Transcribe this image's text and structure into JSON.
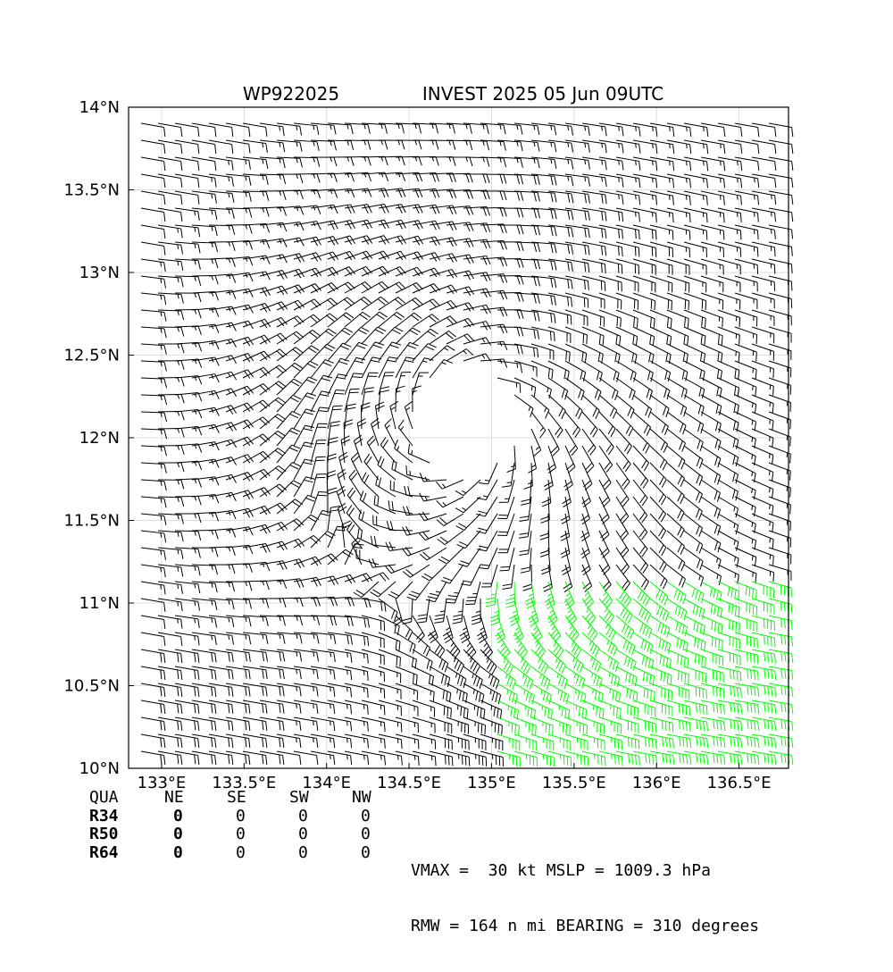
{
  "header": {
    "storm_id": "WP922025",
    "name_time": "INVEST 2025 05 Jun 09UTC"
  },
  "map": {
    "lon_range": [
      132.8,
      136.8
    ],
    "lat_range": [
      10.0,
      14.0
    ],
    "x_ticks": [
      {
        "value": 133.0,
        "label": "133°E"
      },
      {
        "value": 133.5,
        "label": "133.5°E"
      },
      {
        "value": 134.0,
        "label": "134°E"
      },
      {
        "value": 134.5,
        "label": "134.5°E"
      },
      {
        "value": 135.0,
        "label": "135°E"
      },
      {
        "value": 135.5,
        "label": "135.5°E"
      },
      {
        "value": 136.0,
        "label": "136°E"
      },
      {
        "value": 136.5,
        "label": "136.5°E"
      }
    ],
    "y_ticks": [
      {
        "value": 10.0,
        "label": "10°N"
      },
      {
        "value": 10.5,
        "label": "10.5°N"
      },
      {
        "value": 11.0,
        "label": "11°N"
      },
      {
        "value": 11.5,
        "label": "11.5°N"
      },
      {
        "value": 12.0,
        "label": "12°N"
      },
      {
        "value": 12.5,
        "label": "12.5°N"
      },
      {
        "value": 13.0,
        "label": "13°N"
      },
      {
        "value": 13.5,
        "label": "13.5°N"
      },
      {
        "value": 14.0,
        "label": "14°N"
      }
    ],
    "grid": true,
    "center": {
      "lon": 134.85,
      "lat": 12.1
    },
    "colors": {
      "normal_barb": "#000000",
      "high_barb": "#00ff00",
      "grid": "#dddddd"
    }
  },
  "table": {
    "header": [
      "QUA",
      "NE",
      "SE",
      "SW",
      "NW"
    ],
    "rows": [
      {
        "label": "R34",
        "values": [
          "0",
          "0",
          "0",
          "0"
        ]
      },
      {
        "label": "R50",
        "values": [
          "0",
          "0",
          "0",
          "0"
        ]
      },
      {
        "label": "R64",
        "values": [
          "0",
          "0",
          "0",
          "0"
        ]
      }
    ]
  },
  "stats": {
    "line1": "VMAX =  30 kt MSLP = 1009.3 hPa",
    "line2": "RMW = 164 n mi BEARING = 310 degrees"
  }
}
